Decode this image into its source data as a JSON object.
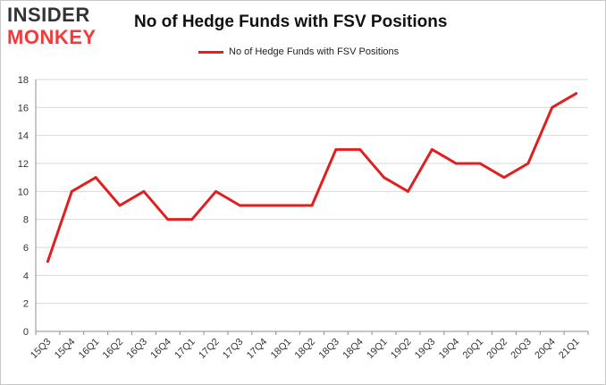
{
  "logo": {
    "line1": "INSIDER",
    "line2": "MONKEY"
  },
  "chart_data": {
    "type": "line",
    "title": "No of Hedge Funds with FSV Positions",
    "xlabel": "",
    "ylabel": "",
    "categories": [
      "15Q3",
      "15Q4",
      "16Q1",
      "16Q2",
      "16Q3",
      "16Q4",
      "17Q1",
      "17Q2",
      "17Q3",
      "17Q4",
      "18Q1",
      "18Q2",
      "18Q3",
      "18Q4",
      "19Q1",
      "19Q2",
      "19Q3",
      "19Q4",
      "20Q1",
      "20Q2",
      "20Q3",
      "20Q4",
      "21Q1"
    ],
    "series": [
      {
        "name": "No of Hedge Funds with FSV Positions",
        "color": "#e02020",
        "values": [
          5,
          10,
          11,
          9,
          10,
          8,
          8,
          10,
          9,
          9,
          9,
          9,
          13,
          13,
          11,
          10,
          13,
          12,
          12,
          11,
          12,
          16,
          17
        ]
      }
    ],
    "ylim": [
      0,
      18
    ],
    "yticks": [
      0,
      2,
      4,
      6,
      8,
      10,
      12,
      14,
      16,
      18
    ],
    "grid": true,
    "legend_position": "top"
  }
}
